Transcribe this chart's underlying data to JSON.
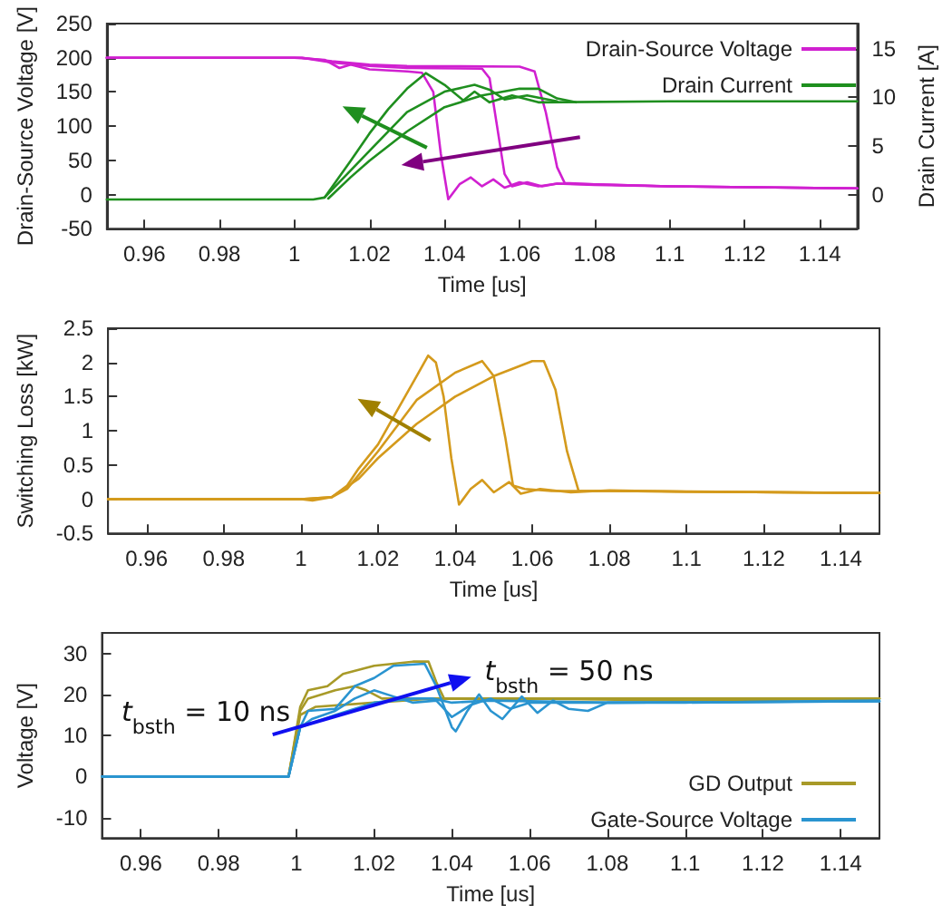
{
  "chart_data": [
    {
      "type": "line",
      "xlabel": "Time [us]",
      "ylabel": "Drain-Source Voltage [V]",
      "y2label": "Drain Current [A]",
      "xlim": [
        0.95,
        1.15
      ],
      "xticks": [
        0.96,
        0.98,
        1,
        1.02,
        1.04,
        1.06,
        1.08,
        1.1,
        1.12,
        1.14
      ],
      "ylim": [
        -50,
        250
      ],
      "yticks": [
        -50,
        0,
        50,
        100,
        150,
        200,
        250
      ],
      "y2lim": [
        -3.5,
        17.6
      ],
      "y2ticks": [
        0,
        5,
        10,
        15
      ],
      "legend": "top right",
      "marker": "none",
      "line_style": "solid",
      "series": [
        {
          "name": "Drain-Source Voltage",
          "color": "#d020d0",
          "x": [
            0.95,
            1.0,
            1.003,
            1.008,
            1.012,
            1.015,
            1.02,
            1.03,
            1.034,
            1.037,
            1.039,
            1.041,
            1.044,
            1.047,
            1.05,
            1.053,
            1.056,
            1.06,
            1.065,
            1.07,
            1.08,
            1.1,
            1.15
          ],
          "values": [
            200,
            200,
            199,
            197,
            185,
            190,
            183,
            180,
            178,
            150,
            60,
            -7,
            15,
            25,
            12,
            22,
            10,
            18,
            12,
            16,
            15,
            12,
            9
          ]
        },
        {
          "color": "#d020d0",
          "x": [
            0.95,
            1.002,
            1.01,
            1.02,
            1.03,
            1.05,
            1.052,
            1.054,
            1.056,
            1.058,
            1.062,
            1.066,
            1.07,
            1.08,
            1.1,
            1.15
          ],
          "values": [
            200,
            200,
            193,
            188,
            185,
            184,
            170,
            100,
            30,
            12,
            18,
            12,
            16,
            14,
            12,
            9
          ]
        },
        {
          "color": "#d020d0",
          "x": [
            0.95,
            1.002,
            1.01,
            1.02,
            1.03,
            1.06,
            1.064,
            1.067,
            1.07,
            1.072,
            1.08,
            1.1,
            1.15
          ],
          "values": [
            200,
            200,
            195,
            190,
            188,
            187,
            180,
            120,
            40,
            17,
            15,
            12,
            9
          ]
        },
        {
          "name": "Drain Current",
          "color": "#1f8f1f",
          "axis": "y2",
          "x": [
            0.95,
            1.005,
            1.008,
            1.015,
            1.02,
            1.025,
            1.03,
            1.035,
            1.04,
            1.045,
            1.048,
            1.052,
            1.058,
            1.065,
            1.1,
            1.15
          ],
          "values": [
            -0.5,
            -0.5,
            -0.3,
            3.5,
            6.3,
            8.8,
            10.9,
            12.5,
            11.3,
            9.7,
            10.6,
            9.5,
            10.2,
            9.5,
            9.6,
            9.6
          ]
        },
        {
          "color": "#1f8f1f",
          "axis": "y2",
          "x": [
            1.008,
            1.015,
            1.02,
            1.03,
            1.04,
            1.048,
            1.052,
            1.056,
            1.062,
            1.07
          ],
          "values": [
            -0.3,
            2.5,
            4.5,
            8.5,
            10.6,
            11.3,
            10.8,
            9.8,
            10.2,
            9.6
          ]
        },
        {
          "color": "#1f8f1f",
          "axis": "y2",
          "x": [
            1.009,
            1.015,
            1.02,
            1.03,
            1.04,
            1.05,
            1.06,
            1.065,
            1.07,
            1.075
          ],
          "values": [
            -0.4,
            1.8,
            3.5,
            6.5,
            9,
            10.2,
            10.9,
            10.9,
            9.9,
            9.5
          ]
        }
      ]
    },
    {
      "type": "line",
      "xlabel": "Time [us]",
      "ylabel": "Switching Loss [kW]",
      "xlim": [
        0.95,
        1.15
      ],
      "xticks": [
        0.96,
        0.98,
        1,
        1.02,
        1.04,
        1.06,
        1.08,
        1.1,
        1.12,
        1.14
      ],
      "ylim": [
        -0.5,
        2.5
      ],
      "yticks": [
        -0.5,
        0,
        0.5,
        1,
        1.5,
        2,
        2.5
      ],
      "marker": "none",
      "line_style": "solid",
      "series": [
        {
          "color": "#d49a1c",
          "x": [
            0.95,
            1.0,
            1.003,
            1.008,
            1.012,
            1.015,
            1.02,
            1.025,
            1.03,
            1.033,
            1.035,
            1.037,
            1.039,
            1.041,
            1.044,
            1.047,
            1.05,
            1.054,
            1.057,
            1.062,
            1.07,
            1.08,
            1.1,
            1.15
          ],
          "values": [
            0,
            0,
            -0.02,
            0.03,
            0.2,
            0.45,
            0.8,
            1.3,
            1.8,
            2.1,
            2.0,
            1.5,
            0.6,
            -0.08,
            0.15,
            0.28,
            0.1,
            0.25,
            0.08,
            0.15,
            0.1,
            0.13,
            0.11,
            0.09
          ]
        },
        {
          "color": "#d49a1c",
          "x": [
            0.95,
            1.0,
            1.008,
            1.012,
            1.02,
            1.03,
            1.04,
            1.047,
            1.05,
            1.053,
            1.055,
            1.058,
            1.065,
            1.08,
            1.15
          ],
          "values": [
            0,
            0,
            0.03,
            0.15,
            0.7,
            1.45,
            1.85,
            2.02,
            1.8,
            0.9,
            0.2,
            0.15,
            0.12,
            0.12,
            0.09
          ]
        },
        {
          "color": "#d49a1c",
          "x": [
            0.95,
            1.0,
            1.008,
            1.015,
            1.02,
            1.03,
            1.04,
            1.05,
            1.06,
            1.063,
            1.066,
            1.069,
            1.072,
            1.08,
            1.1,
            1.15
          ],
          "values": [
            0,
            0,
            0.03,
            0.3,
            0.6,
            1.1,
            1.5,
            1.8,
            2.02,
            2.02,
            1.6,
            0.7,
            0.12,
            0.12,
            0.11,
            0.09
          ]
        }
      ]
    },
    {
      "type": "line",
      "xlabel": "Time [us]",
      "ylabel": "Voltage [V]",
      "xlim": [
        0.95,
        1.15
      ],
      "xticks": [
        0.96,
        0.98,
        1,
        1.02,
        1.04,
        1.06,
        1.08,
        1.1,
        1.12,
        1.14
      ],
      "ylim": [
        -15,
        35
      ],
      "yticks": [
        -10,
        0,
        10,
        20,
        30
      ],
      "legend": "bottom right",
      "marker": "none",
      "line_style": "solid",
      "annotations": [
        "t$_{bsth}$ = 10 ns",
        "t$_{bsth}$ = 50 ns"
      ],
      "series": [
        {
          "name": "GD Output",
          "color": "#a89a28",
          "x": [
            0.95,
            0.998,
            1.001,
            1.005,
            1.02,
            1.035,
            1.045,
            1.06,
            1.1,
            1.15
          ],
          "values": [
            0,
            0,
            15,
            17,
            18,
            19,
            19,
            19,
            18.5,
            19
          ]
        },
        {
          "color": "#a89a28",
          "x": [
            0.95,
            0.998,
            1.001,
            1.003,
            1.01,
            1.015,
            1.018,
            1.022,
            1.04,
            1.15
          ],
          "values": [
            0,
            0,
            16,
            19,
            21,
            22,
            21,
            19,
            19,
            19
          ]
        },
        {
          "color": "#a89a28",
          "x": [
            0.95,
            0.998,
            1.001,
            1.003,
            1.008,
            1.012,
            1.02,
            1.03,
            1.034,
            1.036,
            1.038,
            1.06,
            1.15
          ],
          "values": [
            0,
            0,
            17,
            21,
            22,
            25,
            27,
            28,
            28,
            23,
            19,
            19,
            19
          ]
        },
        {
          "name": "Gate-Source Voltage",
          "color": "#2a94d0",
          "x": [
            0.95,
            0.998,
            1.001,
            1.004,
            1.01,
            1.02,
            1.03,
            1.035,
            1.04,
            1.05,
            1.08,
            1.15
          ],
          "values": [
            0,
            0,
            12,
            13,
            15,
            18,
            19,
            19,
            18,
            18.5,
            18,
            18.3
          ]
        },
        {
          "color": "#2a94d0",
          "x": [
            0.95,
            0.998,
            1.001,
            1.004,
            1.01,
            1.015,
            1.02,
            1.025,
            1.03,
            1.036,
            1.04,
            1.045,
            1.05,
            1.055,
            1.06,
            1.08,
            1.15
          ],
          "values": [
            0,
            0,
            12,
            14,
            16,
            19,
            21,
            19.5,
            18,
            18.5,
            14.5,
            17.5,
            19,
            16.5,
            18,
            18,
            18.3
          ]
        },
        {
          "color": "#2a94d0",
          "x": [
            0.95,
            0.998,
            1.001,
            1.003,
            1.01,
            1.015,
            1.02,
            1.025,
            1.033,
            1.036,
            1.04,
            1.041,
            1.044,
            1.047,
            1.05,
            1.053,
            1.058,
            1.062,
            1.066,
            1.07,
            1.075,
            1.08,
            1.1,
            1.15
          ],
          "values": [
            0,
            0,
            12,
            16,
            16.5,
            22,
            24,
            27,
            27.5,
            22,
            12,
            11,
            16,
            20,
            16,
            14,
            19.5,
            15.5,
            18.5,
            16.5,
            16,
            18,
            18,
            18.5
          ]
        }
      ]
    }
  ]
}
